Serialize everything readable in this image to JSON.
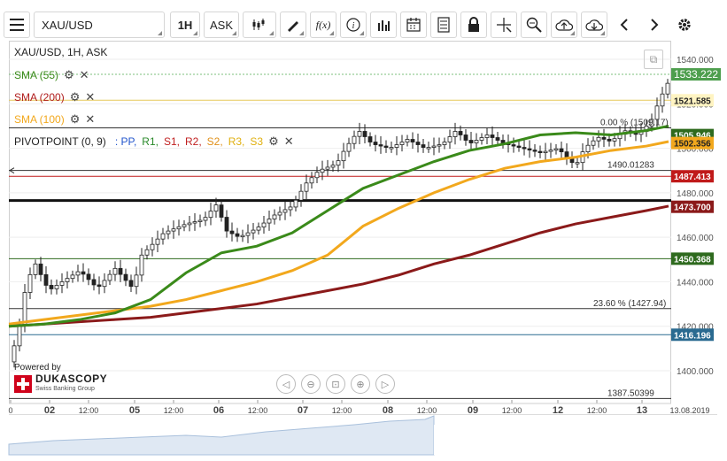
{
  "toolbar": {
    "instrument": "XAU/USD",
    "period": "1H",
    "side": "ASK",
    "formula_label": "f(x)"
  },
  "chart_data": {
    "type": "candlestick",
    "title": "XAU/USD, 1H, ASK",
    "y_ticks": [
      "1540.000",
      "1520.000",
      "1500.000",
      "1480.000",
      "1460.000",
      "1440.000",
      "1420.000",
      "1400.000"
    ],
    "ylim": [
      1395,
      1545
    ],
    "x_ticks": [
      "0",
      "02",
      "12:00",
      "05",
      "12:00",
      "06",
      "12:00",
      "07",
      "12:00",
      "08",
      "12:00",
      "09",
      "12:00",
      "12",
      "12:00",
      "13",
      "13.08.2019"
    ],
    "indicators": [
      {
        "name": "SMA (55)",
        "color": "#3a8a1a"
      },
      {
        "name": "SMA (200)",
        "color": "#b01c1c"
      },
      {
        "name": "SMA (100)",
        "color": "#f2a81d"
      }
    ],
    "pivot_label": "PIVOTPOINT (0, 9)",
    "pivot_parts": [
      {
        "text": ": PP,",
        "color": "#2255cc"
      },
      {
        "text": "R1,",
        "color": "#2a8a2a"
      },
      {
        "text": "S1,",
        "color": "#c02020"
      },
      {
        "text": "R2,",
        "color": "#c02020"
      },
      {
        "text": "S2,",
        "color": "#e0901a"
      },
      {
        "text": "R3,",
        "color": "#e0b010"
      },
      {
        "text": "S3",
        "color": "#e0b010"
      }
    ],
    "price_labels": [
      {
        "text": "1533.222",
        "value": 1533.222,
        "bg": "#4d9e4d",
        "fg": "#ffffff"
      },
      {
        "text": "1521.585",
        "value": 1521.585,
        "bg": "#fff4c2",
        "fg": "#222222"
      },
      {
        "text": "1505.946",
        "value": 1505.946,
        "bg": "#2e6a1e",
        "fg": "#ffffff"
      },
      {
        "text": "1502.356",
        "value": 1502.356,
        "bg": "#f2a81d",
        "fg": "#222222"
      },
      {
        "text": "1487.413",
        "value": 1487.413,
        "bg": "#c01a1a",
        "fg": "#ffffff"
      },
      {
        "text": "1473.700",
        "value": 1473.7,
        "bg": "#8b1a1a",
        "fg": "#ffffff"
      },
      {
        "text": "1450.368",
        "value": 1450.368,
        "bg": "#2e6a1e",
        "fg": "#ffffff"
      },
      {
        "text": "1416.196",
        "value": 1416.196,
        "bg": "#2a6a90",
        "fg": "#ffffff"
      }
    ],
    "annotations": [
      {
        "text": "0.00 % (1509.17)",
        "value": 1509.17
      },
      {
        "text": "1490.01283",
        "value": 1490.01283
      },
      {
        "text": "23.60 % (1427.94)",
        "value": 1427.94
      },
      {
        "text": "1387.50399",
        "value": 1387.50399
      }
    ],
    "sma55": [
      [
        0,
        1420
      ],
      [
        40,
        1421
      ],
      [
        80,
        1423
      ],
      [
        120,
        1426
      ],
      [
        160,
        1432
      ],
      [
        200,
        1444
      ],
      [
        240,
        1453
      ],
      [
        280,
        1456
      ],
      [
        320,
        1462
      ],
      [
        360,
        1472
      ],
      [
        400,
        1482
      ],
      [
        440,
        1488
      ],
      [
        480,
        1494
      ],
      [
        520,
        1499
      ],
      [
        560,
        1502
      ],
      [
        600,
        1506
      ],
      [
        640,
        1507
      ],
      [
        680,
        1506
      ],
      [
        720,
        1508
      ],
      [
        745,
        1510
      ]
    ],
    "sma100": [
      [
        0,
        1421
      ],
      [
        40,
        1423
      ],
      [
        80,
        1425
      ],
      [
        120,
        1427
      ],
      [
        160,
        1429
      ],
      [
        200,
        1432
      ],
      [
        240,
        1436
      ],
      [
        280,
        1440
      ],
      [
        320,
        1445
      ],
      [
        360,
        1452
      ],
      [
        400,
        1465
      ],
      [
        440,
        1473
      ],
      [
        480,
        1480
      ],
      [
        520,
        1486
      ],
      [
        560,
        1491
      ],
      [
        600,
        1494
      ],
      [
        640,
        1496
      ],
      [
        680,
        1499
      ],
      [
        720,
        1501
      ],
      [
        745,
        1503
      ]
    ],
    "sma200": [
      [
        0,
        1420
      ],
      [
        40,
        1421
      ],
      [
        80,
        1422
      ],
      [
        120,
        1423
      ],
      [
        160,
        1424
      ],
      [
        200,
        1426
      ],
      [
        240,
        1428
      ],
      [
        280,
        1430
      ],
      [
        320,
        1433
      ],
      [
        360,
        1436
      ],
      [
        400,
        1439
      ],
      [
        440,
        1443
      ],
      [
        480,
        1448
      ],
      [
        520,
        1452
      ],
      [
        560,
        1457
      ],
      [
        600,
        1462
      ],
      [
        640,
        1466
      ],
      [
        680,
        1469
      ],
      [
        720,
        1472
      ],
      [
        745,
        1474
      ]
    ]
  },
  "nav": {
    "powered_by": "Powered by",
    "brand": "DUKASCOPY",
    "brand_sub": "Swiss Banking Group"
  }
}
